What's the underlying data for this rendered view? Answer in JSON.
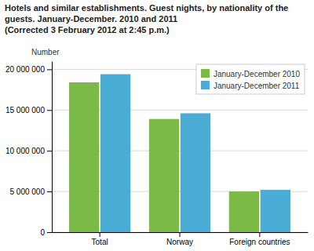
{
  "chart_data": {
    "type": "bar",
    "title": "Hotels and similar establishments. Guest nights, by nationality of the guests. January-December. 2010 and 2011",
    "subtitle": "(Corrected 3 February 2012 at 2:45 p.m.)",
    "ylabel": "Number",
    "categories": [
      "Total",
      "Norway",
      "Foreign countries"
    ],
    "series": [
      {
        "name": "January-December 2010",
        "color": "#7aba45",
        "values": [
          18400000,
          13900000,
          5000000
        ]
      },
      {
        "name": "January-December 2011",
        "color": "#4bacd6",
        "values": [
          19400000,
          14600000,
          5200000
        ]
      }
    ],
    "ylim": [
      0,
      21000000
    ],
    "yticks": [
      0,
      {
        "value": 5000000,
        "label": "5 000 000"
      },
      {
        "value": 10000000,
        "label": "10 000 000"
      },
      {
        "value": 15000000,
        "label": "15 000 000"
      },
      {
        "value": 20000000,
        "label": "20 000 000"
      }
    ],
    "grid": true,
    "legend": "upper right"
  }
}
